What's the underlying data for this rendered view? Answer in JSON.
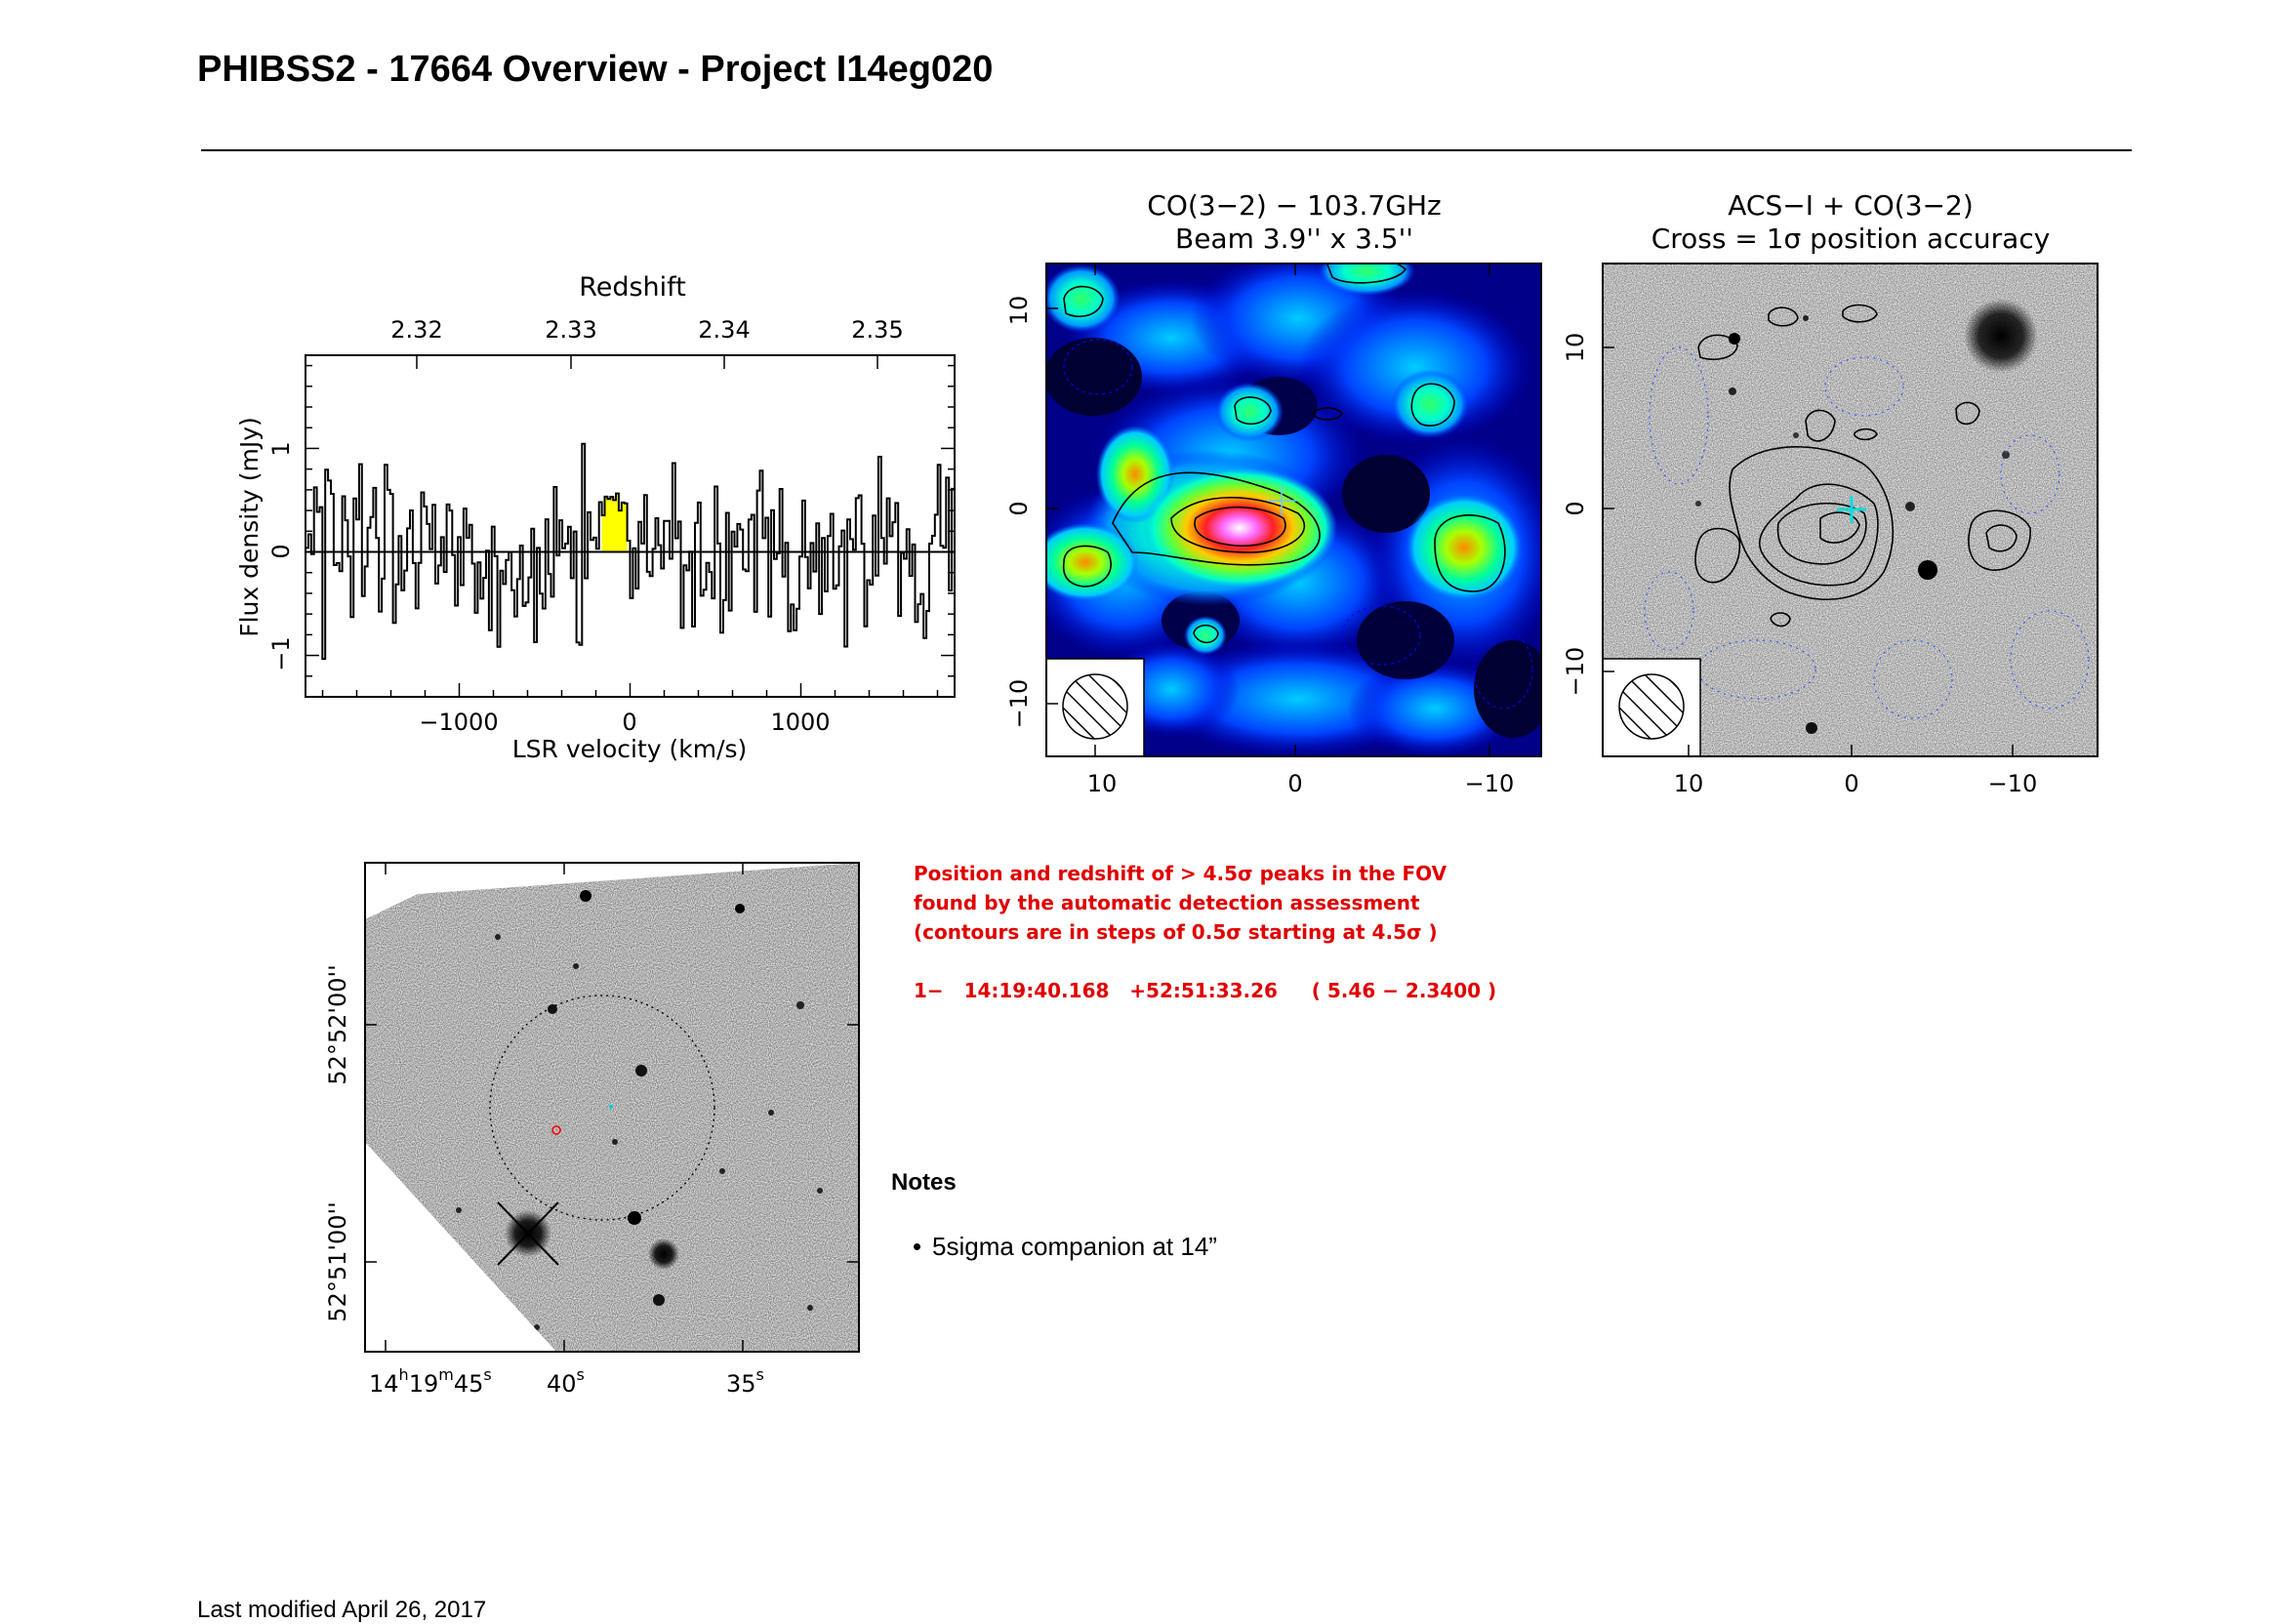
{
  "header": {
    "title": "PHIBSS2 - 17664 Overview - Project I14eg020"
  },
  "spectrum": {
    "top_axis_label": "Redshift",
    "top_ticks": [
      "2.32",
      "2.33",
      "2.34",
      "2.35"
    ],
    "ylabel": "Flux density (mJy)",
    "xlabel": "LSR velocity (km/s)",
    "x_ticks": [
      "−1000",
      "0",
      "1000"
    ],
    "y_ticks": [
      "−1",
      "0",
      "1"
    ]
  },
  "co_map": {
    "title_line1": "CO(3−2) − 103.7GHz",
    "title_line2": "Beam 3.9'' x 3.5''",
    "x_ticks": [
      "10",
      "0",
      "−10"
    ],
    "y_ticks": [
      "10",
      "0",
      "−10"
    ]
  },
  "acs_map": {
    "title_line1": "ACS−I + CO(3−2)",
    "title_line2": "Cross = 1σ position accuracy",
    "x_ticks": [
      "10",
      "0",
      "−10"
    ],
    "y_ticks": [
      "10",
      "0",
      "−10"
    ]
  },
  "finder": {
    "y_ticks": [
      "52°52'00''",
      "52°51'00''"
    ],
    "x_tick_1": "14",
    "x_tick_1_h": "h",
    "x_tick_1_mid": "19",
    "x_tick_1_m": "m",
    "x_tick_1_end": "45",
    "x_tick_s": "s",
    "x_tick_2": "40",
    "x_tick_3": "35"
  },
  "detection": {
    "text": "Position and redshift of > 4.5σ peaks in the FOV\nfound by the automatic detection assessment\n(contours are in steps of 0.5σ starting at 4.5σ )\n\n1−   14:19:40.168   +52:51:33.26     ( 5.46 − 2.3400 )"
  },
  "notes": {
    "heading": "Notes",
    "items": [
      "5sigma companion at 14”"
    ]
  },
  "footer": {
    "text": "Last modified April 26, 2017"
  },
  "chart_data": [
    {
      "type": "line",
      "x_unit": "LSR velocity (km/s)",
      "xlim": [
        -1900,
        1900
      ],
      "ylim": [
        -1.4,
        1.9
      ],
      "top_axis": {
        "label": "Redshift",
        "ticks": [
          2.32,
          2.33,
          2.34,
          2.35
        ]
      },
      "highlight_range_kms": [
        -180,
        -20
      ],
      "highlight_color": "#ffff00",
      "line_color": "#000000",
      "series_seed": 17664
    }
  ]
}
